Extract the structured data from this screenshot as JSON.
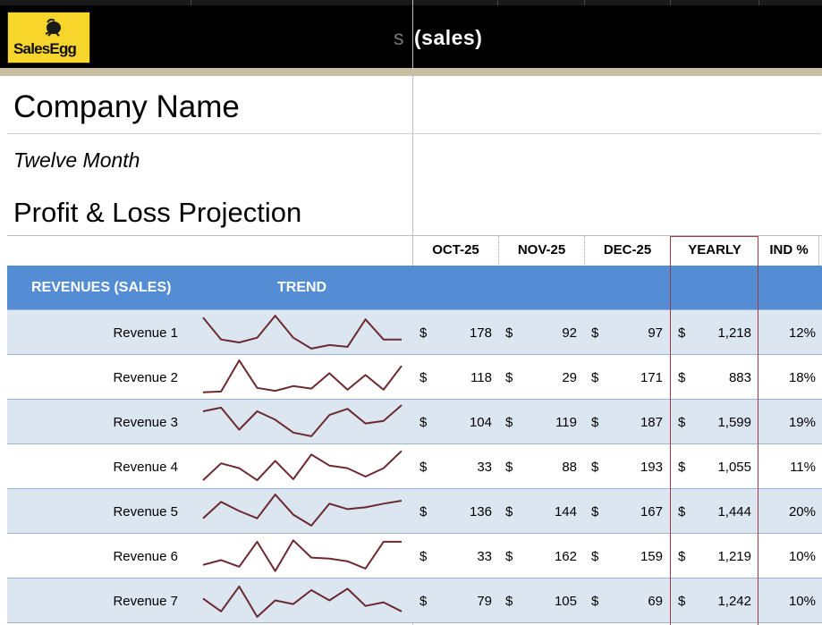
{
  "brand": {
    "logo_text": "SalesEgg",
    "header_title": "(sales)",
    "header_ghost": "s",
    "colors": {
      "header_bg": "#000000",
      "header_trim": "#c8bfa2",
      "logo_bg": "#f7d52a",
      "band": "#548dd4",
      "row_alt": "#dce6f1",
      "trend_line": "#6b2a2f",
      "yearly_outline": "#9b3b46"
    }
  },
  "doc": {
    "company": "Company Name",
    "subtitle": "Twelve Month",
    "title": "Profit & Loss Projection"
  },
  "columns": {
    "oct": "OCT-25",
    "nov": "NOV-25",
    "dec": "DEC-25",
    "yearly": "YEARLY",
    "ind": "IND %"
  },
  "section": {
    "label": "REVENUES (SALES)",
    "trend": "TREND"
  },
  "currency": "$",
  "rows": [
    {
      "label": "Revenue 1",
      "oct": "178",
      "nov": "92",
      "dec": "97",
      "yearly": "1,218",
      "ind": "12%"
    },
    {
      "label": "Revenue 2",
      "oct": "118",
      "nov": "29",
      "dec": "171",
      "yearly": "883",
      "ind": "18%"
    },
    {
      "label": "Revenue 3",
      "oct": "104",
      "nov": "119",
      "dec": "187",
      "yearly": "1,599",
      "ind": "19%"
    },
    {
      "label": "Revenue 4",
      "oct": "33",
      "nov": "88",
      "dec": "193",
      "yearly": "1,055",
      "ind": "11%"
    },
    {
      "label": "Revenue 5",
      "oct": "136",
      "nov": "144",
      "dec": "167",
      "yearly": "1,444",
      "ind": "20%"
    },
    {
      "label": "Revenue 6",
      "oct": "33",
      "nov": "162",
      "dec": "159",
      "yearly": "1,219",
      "ind": "10%"
    },
    {
      "label": "Revenue 7",
      "oct": "79",
      "nov": "105",
      "dec": "69",
      "yearly": "1,242",
      "ind": "10%"
    }
  ],
  "trends": [
    [
      0.9,
      0.3,
      0.22,
      0.35,
      0.95,
      0.35,
      0.05,
      0.15,
      0.1,
      0.85,
      0.3,
      0.3
    ],
    [
      0.08,
      0.1,
      0.95,
      0.2,
      0.12,
      0.25,
      0.18,
      0.6,
      0.15,
      0.55,
      0.15,
      0.8
    ],
    [
      0.78,
      0.88,
      0.28,
      0.78,
      0.55,
      0.2,
      0.1,
      0.68,
      0.85,
      0.45,
      0.52,
      0.95
    ],
    [
      0.12,
      0.58,
      0.45,
      0.12,
      0.65,
      0.15,
      0.82,
      0.52,
      0.45,
      0.22,
      0.45,
      0.92
    ],
    [
      0.3,
      0.75,
      0.5,
      0.3,
      0.95,
      0.4,
      0.1,
      0.7,
      0.55,
      0.6,
      0.7,
      0.78
    ],
    [
      0.25,
      0.38,
      0.2,
      0.88,
      0.08,
      0.92,
      0.45,
      0.42,
      0.35,
      0.15,
      0.88,
      0.88
    ],
    [
      0.55,
      0.2,
      0.88,
      0.05,
      0.5,
      0.4,
      0.78,
      0.5,
      0.82,
      0.35,
      0.45,
      0.2
    ]
  ]
}
